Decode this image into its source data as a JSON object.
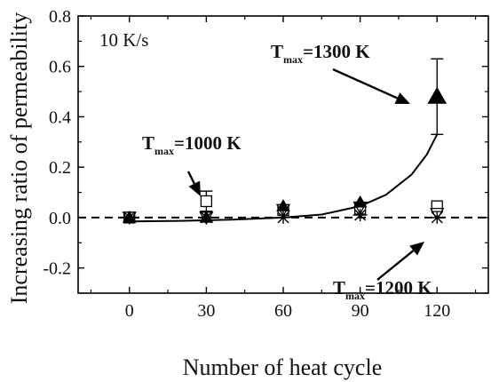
{
  "chart_data": {
    "type": "scatter",
    "xlabel": "Number of heat cycle",
    "ylabel": "Increasing ratio of permeability",
    "xlim": [
      -20,
      140
    ],
    "ylim": [
      -0.3,
      0.8
    ],
    "xticks": [
      0,
      30,
      60,
      90,
      120
    ],
    "xtick_labels": [
      "0",
      "30",
      "60",
      "90",
      "120"
    ],
    "yticks": [
      -0.2,
      0.0,
      0.2,
      0.4,
      0.6,
      0.8
    ],
    "ytick_labels": [
      "-0.2",
      "0.0",
      "0.2",
      "0.4",
      "0.6",
      "0.8"
    ],
    "rate_label": "10 K/s",
    "grid": false,
    "series": [
      {
        "marker": "open-square",
        "x": [
          0,
          30,
          60,
          90,
          120
        ],
        "y": [
          0.0,
          0.065,
          0.03,
          0.035,
          0.045
        ],
        "err": [
          0,
          0.04,
          0,
          0,
          0
        ]
      },
      {
        "marker": "filled-triangle",
        "x": [
          0,
          30,
          60,
          90,
          120
        ],
        "y": [
          0.0,
          0.0,
          0.045,
          0.06,
          0.48
        ],
        "err": [
          0,
          0,
          0,
          0,
          0.15
        ]
      },
      {
        "marker": "open-triangle-down",
        "x": [
          0,
          30,
          60,
          90,
          120
        ],
        "y": [
          0.0,
          0.0,
          0.03,
          0.04,
          0.015
        ],
        "err": [
          0,
          0,
          0,
          0,
          0
        ]
      },
      {
        "marker": "asterisk",
        "x": [
          0,
          30,
          60,
          90,
          120
        ],
        "y": [
          0.0,
          0.0,
          0.0,
          0.01,
          0.0
        ],
        "err": [
          0,
          0,
          0,
          0,
          0
        ]
      }
    ],
    "fit_curve": {
      "style": "solid",
      "x": [
        0,
        20,
        40,
        60,
        75,
        90,
        100,
        110,
        116,
        120
      ],
      "y": [
        -0.015,
        -0.013,
        -0.008,
        0.0,
        0.012,
        0.045,
        0.09,
        0.17,
        0.25,
        0.33
      ]
    },
    "reference_line": {
      "y": 0.0,
      "style": "dashed"
    },
    "annotations": [
      {
        "main": "T",
        "sub": "max",
        "value": "=1000 K",
        "target": [
          30,
          0.1
        ]
      },
      {
        "main": "T",
        "sub": "max",
        "value": "=1300 K",
        "target": [
          120,
          0.49
        ]
      },
      {
        "main": "T",
        "sub": "max",
        "value": "=1200 K",
        "target": [
          120,
          0.0
        ]
      }
    ]
  }
}
